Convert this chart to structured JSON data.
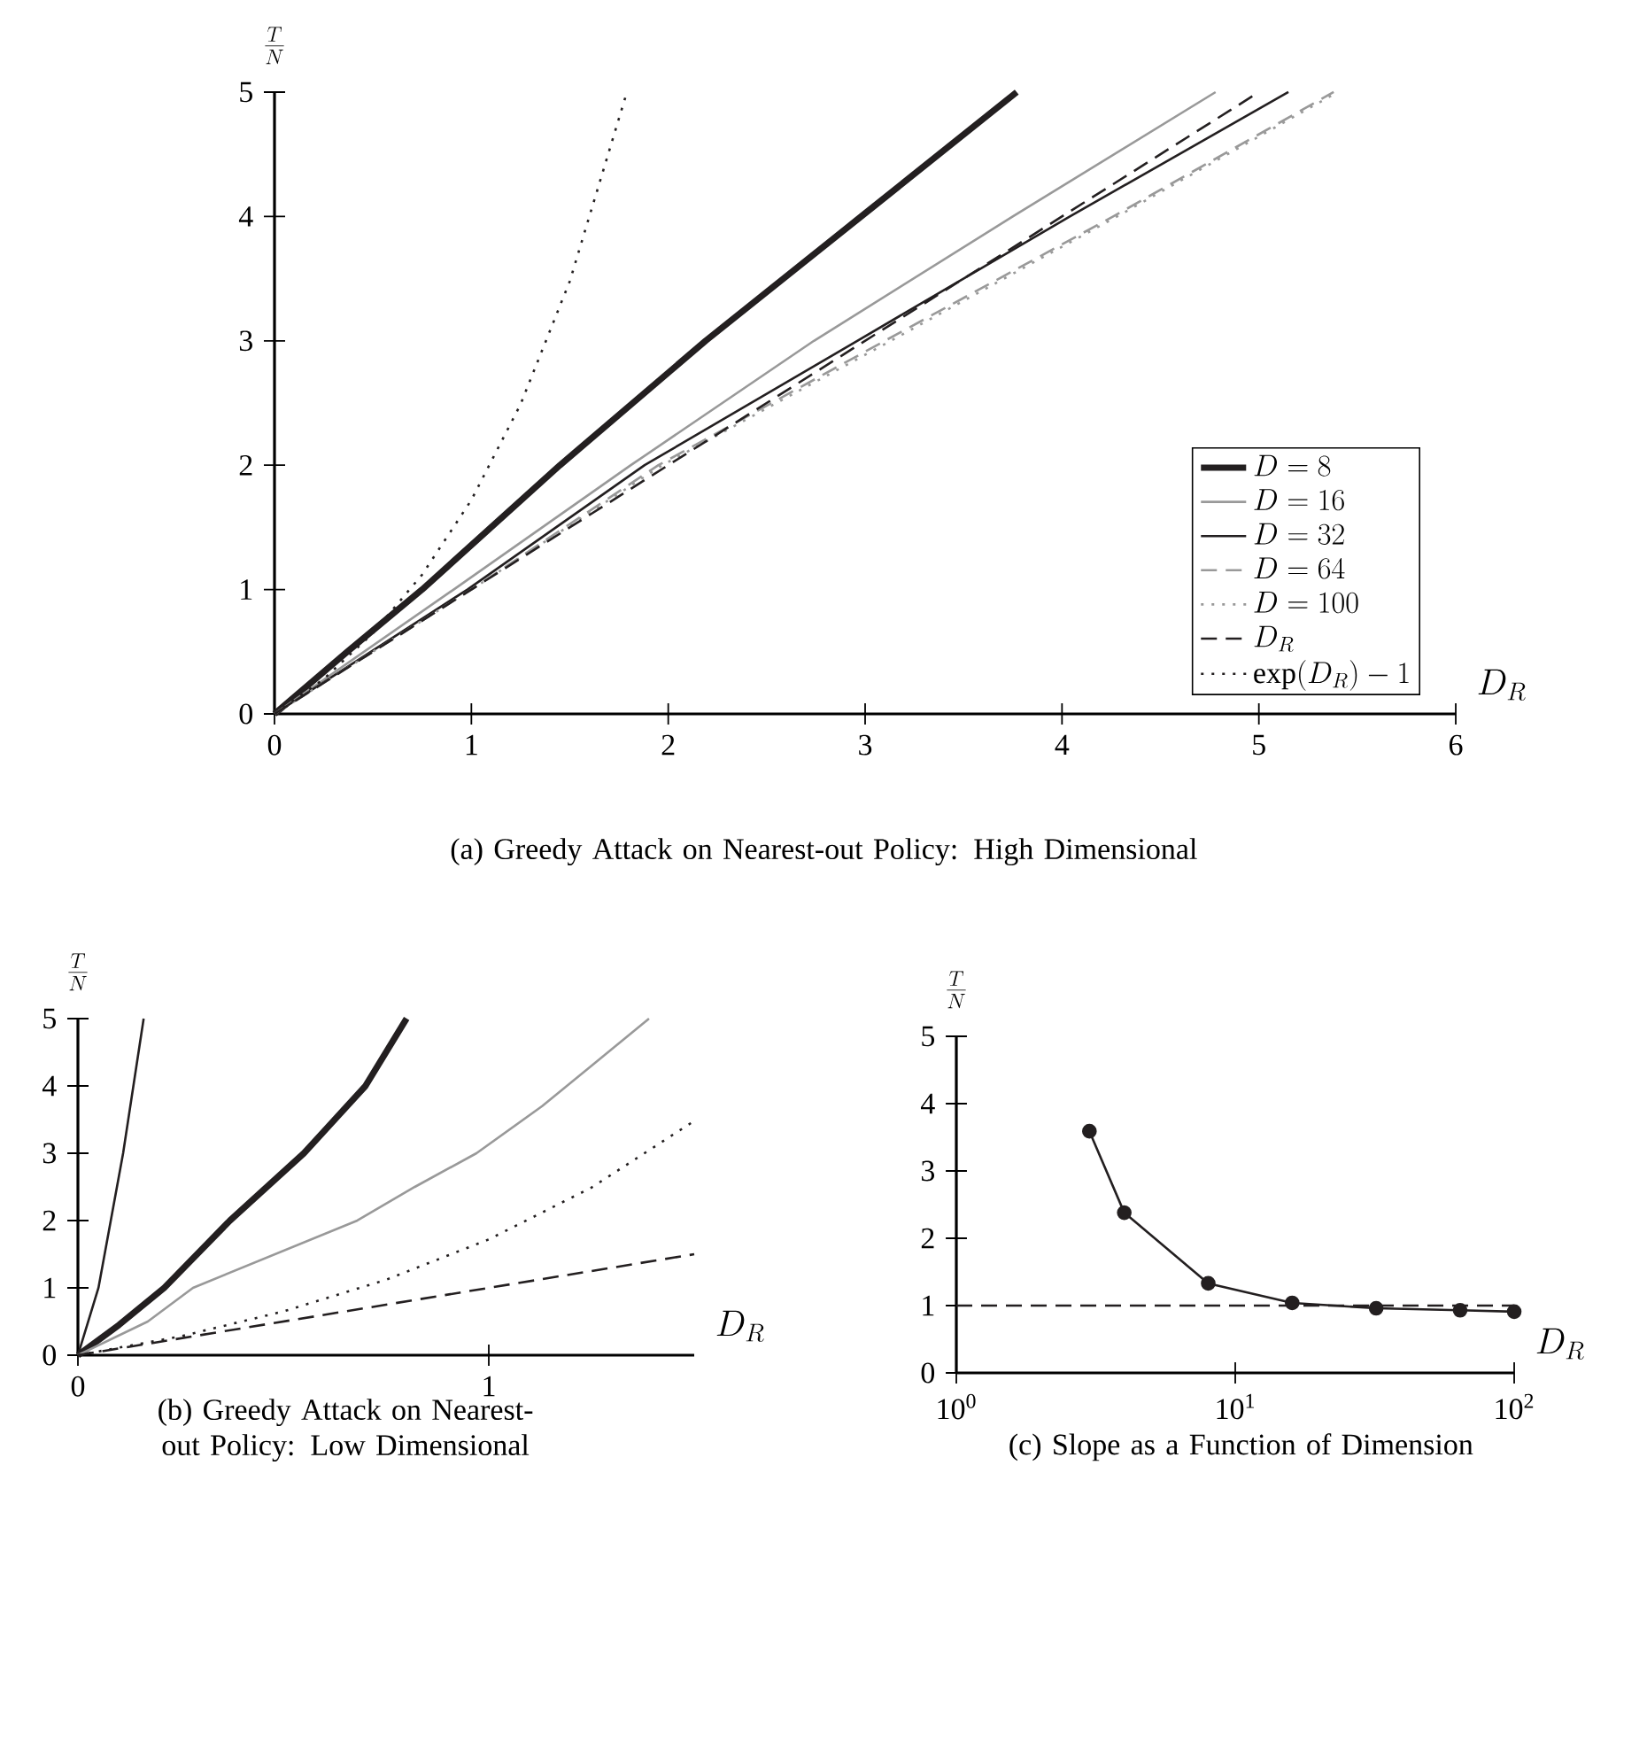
{
  "chart_data": [
    {
      "type": "line",
      "title": "(a) Greedy Attack on Nearest-out Policy: High Dimensional",
      "xlabel": "D_R",
      "ylabel": "\\frac{T}{N}",
      "xlim": [
        0,
        6
      ],
      "ylim": [
        0,
        5
      ],
      "xticks": [
        0,
        1,
        2,
        3,
        4,
        5,
        6
      ],
      "yticks": [
        0,
        1,
        2,
        3,
        4,
        5
      ],
      "legend": "bottom right",
      "series": [
        {
          "name": "D = 8",
          "color": "#231f20",
          "line_style": "solid",
          "x": [
            0,
            0.37,
            0.75,
            1.45,
            2.19,
            2.98,
            3.77
          ],
          "values": [
            0,
            0.5,
            1,
            2,
            3,
            4,
            5
          ]
        },
        {
          "name": "D = 16",
          "color": "#999999",
          "line_style": "solid",
          "x": [
            0,
            0.91,
            1.81,
            2.74,
            3.75,
            4.78
          ],
          "values": [
            0,
            1,
            2,
            3,
            4,
            5
          ]
        },
        {
          "name": "D = 32",
          "color": "#231f20",
          "line_style": "solid",
          "x": [
            0,
            0.98,
            1.88,
            2.96,
            4.04,
            5.15
          ],
          "values": [
            0,
            1,
            2,
            3,
            4,
            5
          ]
        },
        {
          "name": "D = 64",
          "color": "#999999",
          "line_style": "dashed",
          "x": [
            0,
            1,
            1.95,
            3.1,
            4.26,
            5.38
          ],
          "values": [
            0,
            1,
            2,
            3,
            4,
            5
          ]
        },
        {
          "name": "D = 100",
          "color": "#999999",
          "line_style": "dotted",
          "x": [
            0,
            1,
            1.97,
            3.13,
            4.28,
            5.4
          ],
          "values": [
            0,
            1,
            2,
            3,
            4,
            5
          ]
        },
        {
          "name": "D_R",
          "color": "#231f20",
          "line_style": "dashed",
          "x": [
            0,
            5
          ],
          "values": [
            0,
            5
          ]
        },
        {
          "name": "\\exp(D_R) - 1",
          "color": "#231f20",
          "line_style": "dotted",
          "x": [
            0,
            0.25,
            0.5,
            0.75,
            1,
            1.25,
            1.5,
            1.79
          ],
          "values": [
            0,
            0.28,
            0.65,
            1.12,
            1.72,
            2.49,
            3.48,
            5
          ]
        }
      ]
    },
    {
      "type": "line",
      "title": "(b) Greedy Attack on Nearest-out Policy: Low Dimensional",
      "xlabel": "D_R",
      "ylabel": "\\frac{T}{N}",
      "xlim": [
        0,
        1.5
      ],
      "ylim": [
        0,
        5
      ],
      "xticks": [
        0,
        1
      ],
      "yticks": [
        0,
        1,
        2,
        3,
        4,
        5
      ],
      "series": [
        {
          "color": "#231f20",
          "line_style": "solid",
          "x": [
            0,
            0.03,
            0.05,
            0.08,
            0.11,
            0.135,
            0.16
          ],
          "values": [
            0,
            0.6,
            1,
            2,
            3,
            4,
            5
          ]
        },
        {
          "color": "#231f20",
          "line_style": "solid",
          "x": [
            0,
            0.1,
            0.21,
            0.37,
            0.55,
            0.7,
            0.8
          ],
          "values": [
            0,
            0.45,
            1,
            2,
            3,
            4,
            5
          ]
        },
        {
          "color": "#999999",
          "line_style": "solid",
          "x": [
            0,
            0.17,
            0.28,
            0.68,
            0.82,
            0.97,
            1.13,
            1.25,
            1.39
          ],
          "values": [
            0,
            0.5,
            1,
            2,
            2.5,
            3,
            3.7,
            4.3,
            5
          ]
        },
        {
          "color": "#231f20",
          "line_style": "dotted",
          "x": [
            0,
            0.25,
            0.5,
            0.75,
            1,
            1.25,
            1.5
          ],
          "values": [
            0,
            0.28,
            0.65,
            1.12,
            1.72,
            2.49,
            3.48
          ]
        },
        {
          "color": "#231f20",
          "line_style": "dashed",
          "x": [
            0,
            1.5
          ],
          "values": [
            0,
            1.5
          ]
        }
      ]
    },
    {
      "type": "line",
      "title": "(c) Slope as a Function of Dimension",
      "xlabel": "D_R",
      "ylabel": "\\frac{T}{N}",
      "log": "x",
      "marker": "circle",
      "xlim": [
        1,
        100
      ],
      "ylim": [
        0,
        5
      ],
      "xticks": [
        {
          "value": 1,
          "label": "10$^{0}$"
        },
        {
          "value": 10,
          "label": "10$^{1}$"
        },
        {
          "value": 100,
          "label": "10$^{2}$"
        }
      ],
      "yticks": [
        0,
        1,
        2,
        3,
        4,
        5
      ],
      "ref_lines": [
        {
          "axis": "y",
          "value": 1,
          "color": "#231f20",
          "line_style": "dashed"
        }
      ],
      "series": [
        {
          "color": "#231f20",
          "line_style": "solid",
          "x": [
            3,
            4,
            8,
            16,
            32,
            64,
            100
          ],
          "values": [
            3.59,
            2.38,
            1.33,
            1.04,
            0.96,
            0.93,
            0.91
          ]
        }
      ]
    }
  ]
}
